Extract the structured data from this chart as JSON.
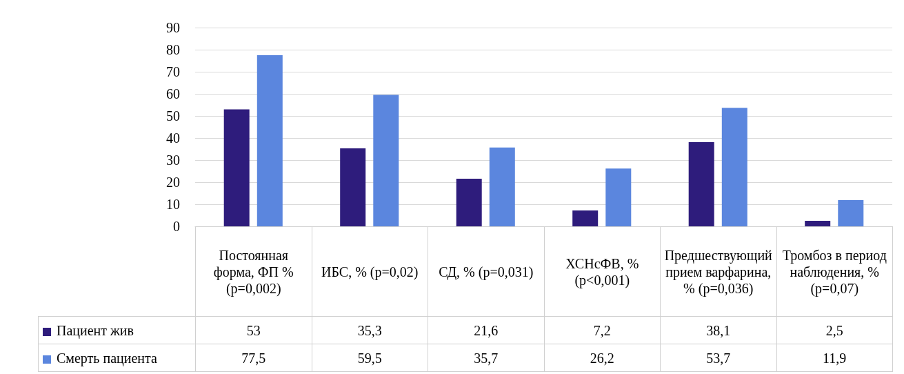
{
  "chart_data": {
    "type": "bar",
    "categories": [
      "Постоянная форма, ФП % (p=0,002)",
      "ИБС, % (p=0,02)",
      "СД, % (p=0,031)",
      "ХСНсФВ, % (p<0,001)",
      "Предшествующий прием варфарина, % (p=0,036)",
      "Тромбоз в период наблюдения, % (p=0,07)"
    ],
    "series": [
      {
        "name": "Пациент жив",
        "color": "#2e1c7c",
        "values": [
          53,
          35.3,
          21.6,
          7.2,
          38.1,
          2.5
        ],
        "value_labels": [
          "53",
          "35,3",
          "21,6",
          "7,2",
          "38,1",
          "2,5"
        ]
      },
      {
        "name": "Смерть пациента",
        "color": "#5b86de",
        "values": [
          77.5,
          59.5,
          35.7,
          26.2,
          53.7,
          11.9
        ],
        "value_labels": [
          "77,5",
          "59,5",
          "35,7",
          "26,2",
          "53,7",
          "11,9"
        ]
      }
    ],
    "ylim": [
      0,
      90
    ],
    "yticks": [
      0,
      10,
      20,
      30,
      40,
      50,
      60,
      70,
      80,
      90
    ],
    "grid": "y",
    "legend": "bottom"
  }
}
